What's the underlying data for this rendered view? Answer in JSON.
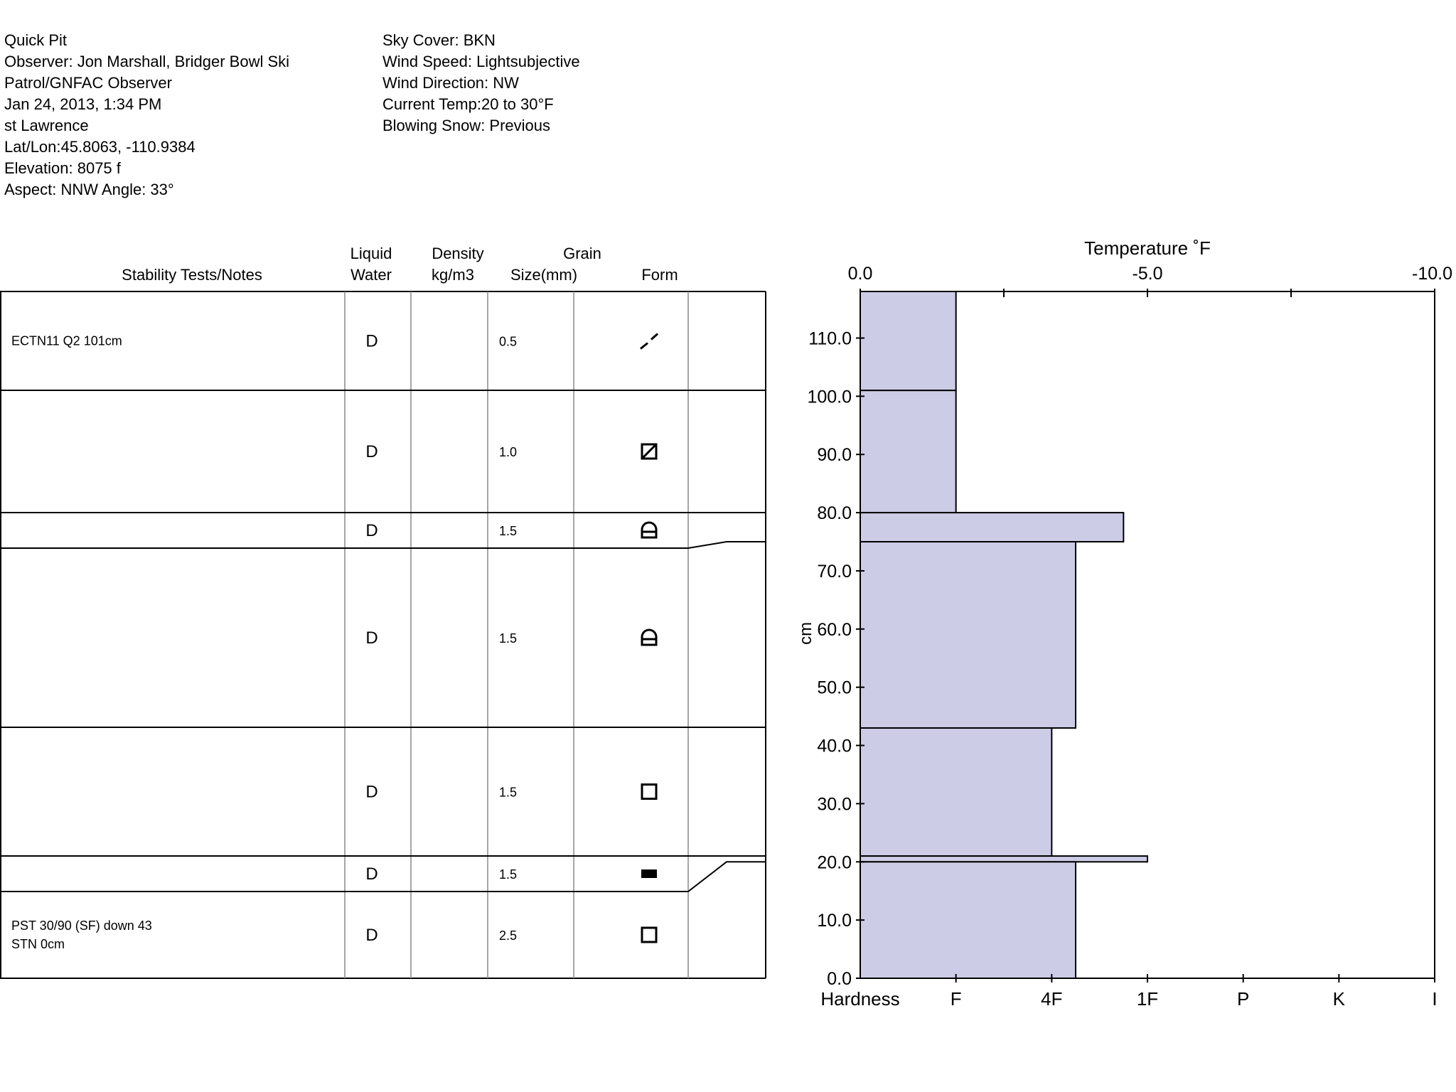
{
  "header": {
    "left": [
      "Quick Pit",
      "Observer: Jon Marshall, Bridger Bowl Ski",
      "Patrol/GNFAC Observer",
      "Jan 24, 2013, 1:34 PM",
      "st Lawrence",
      "Lat/Lon:45.8063, -110.9384",
      "Elevation: 8075 f",
      "Aspect: NNW Angle: 33°"
    ],
    "right": [
      "Sky Cover: BKN",
      "Wind Speed: Lightsubjective",
      "Wind Direction: NW",
      "Current Temp:20 to 30°F",
      "Blowing Snow: Previous"
    ]
  },
  "columns": {
    "notes": "Stability Tests/Notes",
    "liquid_1": "Liquid",
    "liquid_2": "Water",
    "density_1": "Density",
    "density_2": "kg/m3",
    "grain_1": "Grain",
    "grain_2": "Size(mm)",
    "form": "Form"
  },
  "chart_data": {
    "type": "snow-profile",
    "top_title": "Temperature ˚F",
    "top_axis": {
      "ticks": [
        "0.0",
        "-5.0",
        "-10.0"
      ],
      "range": [
        0,
        -10
      ]
    },
    "y_axis": {
      "label": "cm",
      "range": [
        0,
        118
      ],
      "ticks": [
        "0.0",
        "10.0",
        "20.0",
        "30.0",
        "40.0",
        "50.0",
        "60.0",
        "70.0",
        "80.0",
        "90.0",
        "100.0",
        "110.0"
      ]
    },
    "bottom_axis": {
      "label": "Hardness",
      "ticks": [
        "F",
        "4F",
        "1F",
        "P",
        "K",
        "I"
      ]
    },
    "layers": [
      {
        "top": 118,
        "bottom": 101,
        "hardness": 1.0,
        "moisture": "D",
        "grain_size": "0.5",
        "form": "decomposing",
        "note": "ECTN11 Q2 101cm"
      },
      {
        "top": 101,
        "bottom": 80,
        "hardness": 1.0,
        "moisture": "D",
        "grain_size": "1.0",
        "form": "faceted-rounded",
        "note": ""
      },
      {
        "top": 80,
        "bottom": 75,
        "hardness": 2.75,
        "moisture": "D",
        "grain_size": "1.5",
        "form": "depth-hoar-faceted",
        "note": ""
      },
      {
        "top": 75,
        "bottom": 43,
        "hardness": 2.25,
        "moisture": "D",
        "grain_size": "1.5",
        "form": "depth-hoar-faceted",
        "note": ""
      },
      {
        "top": 43,
        "bottom": 21,
        "hardness": 2.0,
        "moisture": "D",
        "grain_size": "1.5",
        "form": "faceted",
        "note": ""
      },
      {
        "top": 21,
        "bottom": 20,
        "hardness": 3.0,
        "moisture": "D",
        "grain_size": "1.5",
        "form": "ice-crust",
        "note": ""
      },
      {
        "top": 20,
        "bottom": 0,
        "hardness": 2.25,
        "moisture": "D",
        "grain_size": "2.5",
        "form": "faceted",
        "note": "PST 30/90 (SF) down 43\nSTN 0cm"
      }
    ],
    "colors": {
      "fill": "#cccce6"
    }
  }
}
